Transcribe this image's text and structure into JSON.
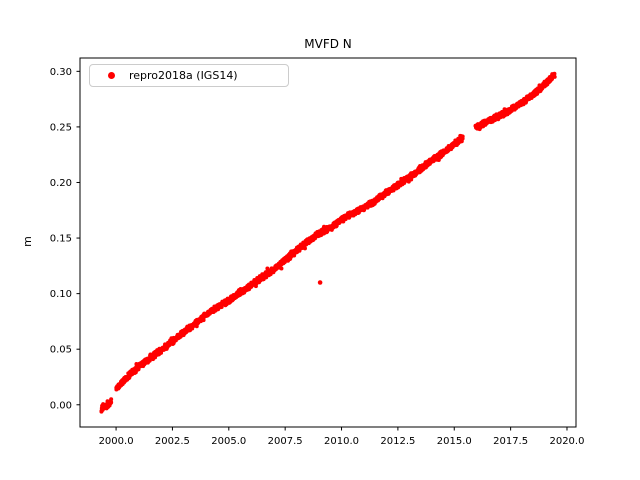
{
  "figure": {
    "background": "#ffffff"
  },
  "chart_data": {
    "type": "scatter",
    "title": "MVFD N",
    "xlabel": "",
    "ylabel": "m",
    "grid": false,
    "legend": {
      "position": "upper left",
      "entries": [
        "repro2018a (IGS14)"
      ]
    },
    "xlim": [
      1998.4,
      2020.4
    ],
    "ylim": [
      -0.02,
      0.312
    ],
    "xticks": [
      2000.0,
      2002.5,
      2005.0,
      2007.5,
      2010.0,
      2012.5,
      2015.0,
      2017.5,
      2020.0
    ],
    "xtick_labels": [
      "2000.0",
      "2002.5",
      "2005.0",
      "2007.5",
      "2010.0",
      "2012.5",
      "2015.0",
      "2017.5",
      "2020.0"
    ],
    "yticks": [
      0.0,
      0.05,
      0.1,
      0.15,
      0.2,
      0.25,
      0.3
    ],
    "ytick_labels": [
      "0.00",
      "0.05",
      "0.10",
      "0.15",
      "0.20",
      "0.25",
      "0.30"
    ],
    "axis_color": "#000000",
    "series": [
      {
        "name": "repro2018a (IGS14)",
        "color": "#ff0000",
        "marker": "dot",
        "description": "Dense daily GPS north-displacement time series rising nearly linearly from about -0.005 m in mid-1999 to about 0.297 m in mid-2019",
        "trend_anchors": [
          [
            1999.35,
            -0.004
          ],
          [
            1999.45,
            -0.003
          ],
          [
            1999.6,
            -0.001
          ],
          [
            1999.75,
            0.002
          ],
          [
            2000.05,
            0.016
          ],
          [
            2000.3,
            0.021
          ],
          [
            2000.6,
            0.027
          ],
          [
            2001.0,
            0.034
          ],
          [
            2001.5,
            0.042
          ],
          [
            2002.0,
            0.049
          ],
          [
            2002.5,
            0.057
          ],
          [
            2003.0,
            0.065
          ],
          [
            2003.5,
            0.073
          ],
          [
            2004.0,
            0.081
          ],
          [
            2004.5,
            0.088
          ],
          [
            2005.0,
            0.094
          ],
          [
            2005.5,
            0.101
          ],
          [
            2006.0,
            0.108
          ],
          [
            2006.5,
            0.115
          ],
          [
            2007.0,
            0.122
          ],
          [
            2007.5,
            0.13
          ],
          [
            2008.0,
            0.139
          ],
          [
            2008.5,
            0.147
          ],
          [
            2009.0,
            0.154
          ],
          [
            2009.5,
            0.159
          ],
          [
            2009.8,
            0.163
          ],
          [
            2010.0,
            0.167
          ],
          [
            2010.3,
            0.17
          ],
          [
            2010.8,
            0.175
          ],
          [
            2011.3,
            0.181
          ],
          [
            2011.8,
            0.188
          ],
          [
            2012.3,
            0.195
          ],
          [
            2012.8,
            0.202
          ],
          [
            2013.3,
            0.209
          ],
          [
            2013.8,
            0.217
          ],
          [
            2014.3,
            0.224
          ],
          [
            2014.8,
            0.231
          ],
          [
            2015.1,
            0.236
          ],
          [
            2015.35,
            0.24
          ],
          [
            2015.95,
            0.249
          ],
          [
            2016.3,
            0.253
          ],
          [
            2016.8,
            0.258
          ],
          [
            2017.3,
            0.263
          ],
          [
            2017.8,
            0.269
          ],
          [
            2018.3,
            0.276
          ],
          [
            2018.8,
            0.284
          ],
          [
            2019.1,
            0.29
          ],
          [
            2019.45,
            0.297
          ]
        ],
        "outliers": [
          [
            2009.05,
            0.11
          ]
        ],
        "gaps": [
          [
            1999.8,
            2000.0
          ],
          [
            2015.38,
            2015.93
          ]
        ],
        "sample_interval_years": 0.02,
        "jitter_m": 0.0022
      }
    ]
  }
}
